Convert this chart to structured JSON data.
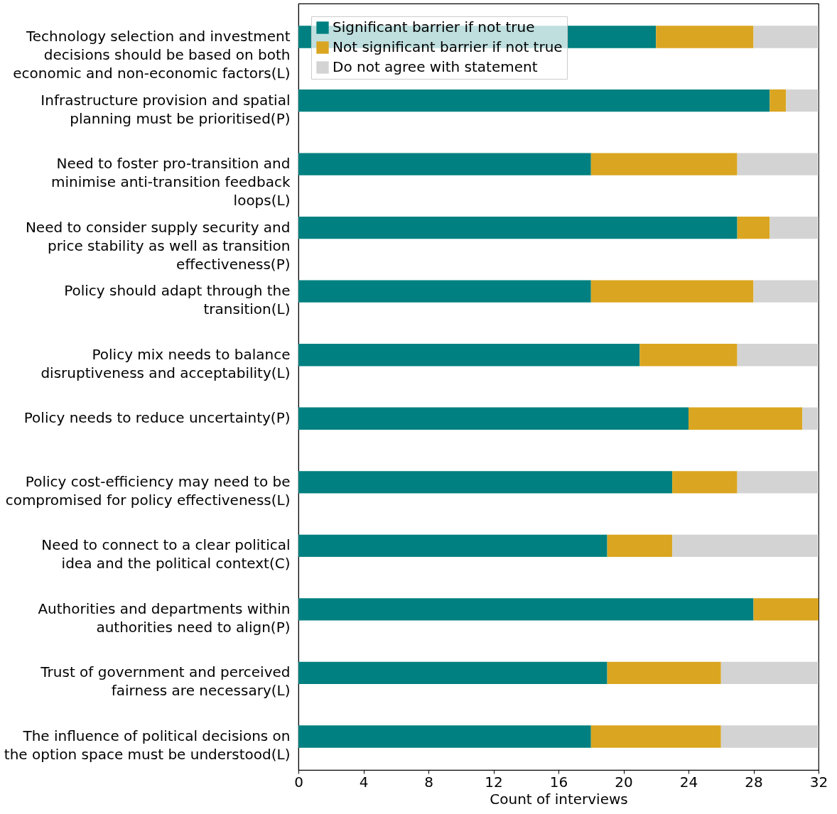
{
  "chart_data": {
    "type": "bar",
    "orientation": "horizontal",
    "stacked": true,
    "xlabel": "Count of interviews",
    "categories": [
      "Technology selection and investment decisions should be based on both economic and non-economic factors(L)",
      "Infrastructure provision and spatial planning must be prioritised(P)",
      "Need to foster pro-transition and minimise anti-transition feedback loops(L)",
      "Need to consider supply security and price stability as well as transition effectiveness(P)",
      "Policy should adapt through the transition(L)",
      "Policy mix needs to balance disruptiveness and acceptability(L)",
      "Policy needs to reduce uncertainty(P)",
      "Policy cost-efficiency may need to be compromised for policy effectiveness(L)",
      "Need to connect to a clear political idea and the political context(C)",
      "Authorities and departments within authorities need to align(P)",
      "Trust of government and perceived fairness are necessary(L)",
      "The influence of political decisions on the option space must be understood(L)"
    ],
    "series": [
      {
        "name": "Significant barrier if not true",
        "color": "#008080",
        "values": [
          22,
          29,
          18,
          27,
          18,
          21,
          24,
          23,
          19,
          28,
          19,
          18
        ]
      },
      {
        "name": "Not significant barrier if not true",
        "color": "#daa520",
        "values": [
          6,
          1,
          9,
          2,
          10,
          6,
          7,
          4,
          4,
          4,
          7,
          8
        ]
      },
      {
        "name": "Do not agree with statement",
        "color": "#d3d3d3",
        "values": [
          4,
          2,
          5,
          3,
          4,
          5,
          1,
          5,
          9,
          0,
          6,
          6
        ]
      }
    ],
    "xlim": [
      0,
      32
    ],
    "xticks": [
      0,
      4,
      8,
      12,
      16,
      20,
      24,
      28,
      32
    ],
    "grid": false,
    "legend": "top left"
  }
}
